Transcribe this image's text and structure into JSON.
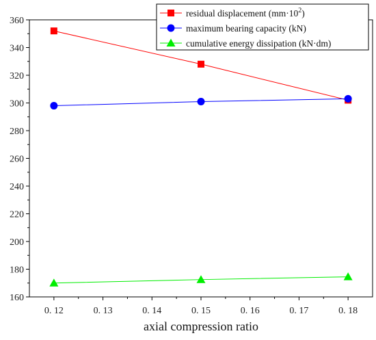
{
  "chart_data": {
    "type": "line",
    "xlabel": "axial compression ratio",
    "ylabel": "",
    "x": [
      0.12,
      0.15,
      0.18
    ],
    "xlim": [
      0.115,
      0.185
    ],
    "xticks": [
      "0. 12",
      "0. 13",
      "0. 14",
      "0. 15",
      "0. 16",
      "0. 17",
      "0. 18"
    ],
    "ylim": [
      160,
      360
    ],
    "yticks": [
      "160",
      "180",
      "200",
      "220",
      "240",
      "260",
      "280",
      "300",
      "320",
      "340",
      "360"
    ],
    "grid": false,
    "legend_placement": "top-right",
    "series": [
      {
        "name": "residual displacement (mm·10",
        "name_sup": "2",
        "name_tail": ")",
        "marker": "square",
        "color": "#ff0000",
        "values": [
          352,
          328,
          302
        ]
      },
      {
        "name": "maximum bearing capacity (kN)",
        "marker": "circle",
        "color": "#0000ff",
        "values": [
          298,
          301,
          303
        ]
      },
      {
        "name": "cumulative energy dissipation (kN·dm)",
        "marker": "triangle",
        "color": "#00ee00",
        "values": [
          170,
          172.5,
          174.5
        ]
      }
    ]
  }
}
